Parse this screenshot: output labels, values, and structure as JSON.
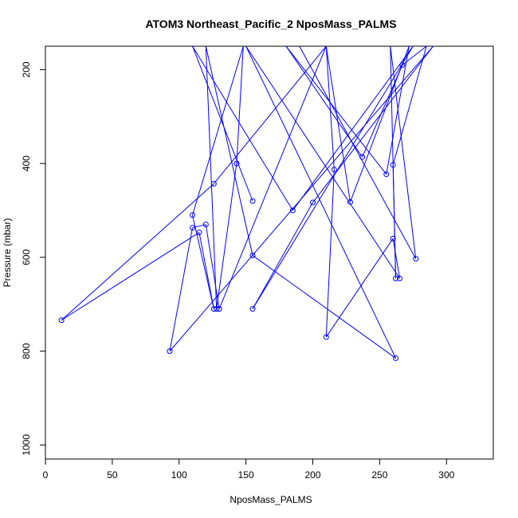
{
  "chart_data": {
    "type": "line",
    "title": "ATOM3 Northeast_Pacific_2 NposMass_PALMS",
    "xlabel": "NposMass_PALMS",
    "ylabel": "Pressure (mbar)",
    "xlim": [
      0,
      335
    ],
    "ylim": [
      1030,
      150
    ],
    "y_reversed": true,
    "x_ticks": [
      0,
      50,
      100,
      150,
      200,
      250,
      300
    ],
    "y_ticks": [
      200,
      400,
      600,
      800,
      1000
    ],
    "series_color": "#0000ff",
    "grid": false,
    "series": [
      {
        "points": [
          [
            155,
            480
          ],
          [
            110,
            150
          ],
          [
            185,
            500
          ],
          [
            275,
            150
          ],
          [
            155,
            710
          ],
          [
            200,
            483
          ],
          [
            290,
            150
          ],
          [
            93,
            800
          ],
          [
            110,
            537
          ],
          [
            120,
            530
          ],
          [
            130,
            710
          ],
          [
            210,
            150
          ],
          [
            126,
            443
          ],
          [
            12,
            734
          ],
          [
            115,
            547
          ],
          [
            126,
            710
          ],
          [
            110,
            510
          ],
          [
            148,
            150
          ],
          [
            143,
            400
          ],
          [
            128,
            710
          ],
          [
            120,
            150
          ],
          [
            155,
            596
          ],
          [
            262,
            815
          ],
          [
            150,
            150
          ],
          [
            265,
            645
          ],
          [
            260,
            560
          ],
          [
            210,
            770
          ],
          [
            216,
            413
          ],
          [
            210,
            150
          ],
          [
            228,
            482
          ],
          [
            272,
            150
          ],
          [
            255,
            423
          ],
          [
            180,
            150
          ],
          [
            237,
            386
          ],
          [
            267,
            190
          ],
          [
            285,
            150
          ],
          [
            260,
            403
          ],
          [
            262,
            645
          ],
          [
            258,
            150
          ],
          [
            277,
            603
          ],
          [
            190,
            150
          ]
        ]
      }
    ]
  }
}
